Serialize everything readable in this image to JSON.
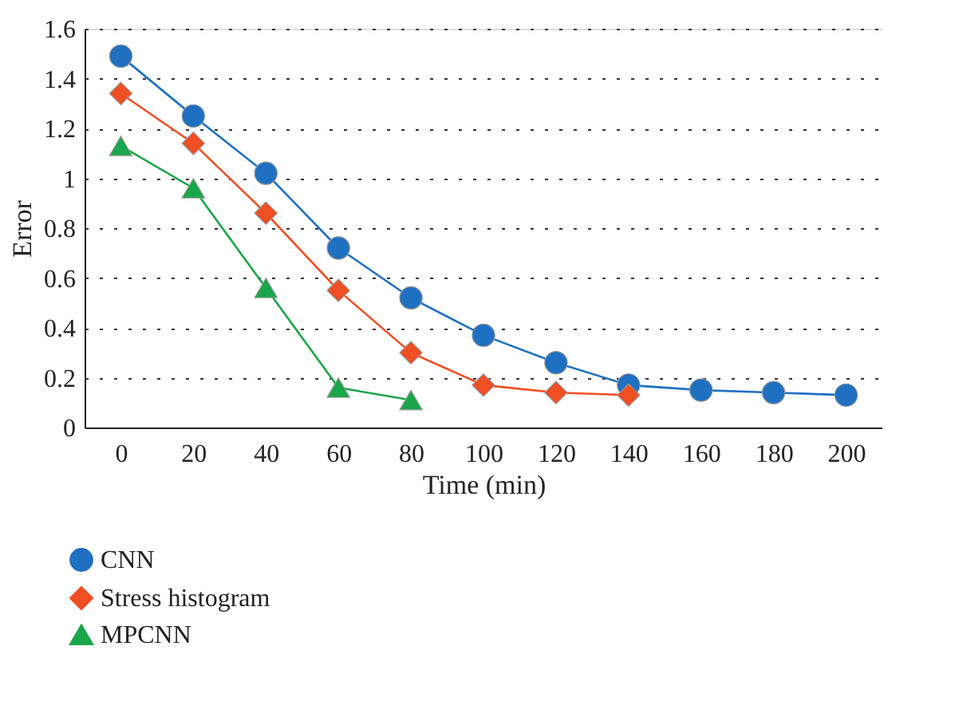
{
  "chart_data": {
    "type": "line",
    "xlabel": "Time (min)",
    "ylabel": "Error",
    "x": [
      0,
      20,
      40,
      60,
      80,
      100,
      120,
      140,
      160,
      180,
      200
    ],
    "series": [
      {
        "name": "CNN",
        "color": "#1f70c1",
        "marker": "circle",
        "values": [
          1.49,
          1.25,
          1.02,
          0.72,
          0.52,
          0.37,
          0.26,
          0.17,
          0.15,
          0.14,
          0.13
        ]
      },
      {
        "name": "Stress histogram",
        "color": "#f04e23",
        "marker": "diamond",
        "values": [
          1.34,
          1.14,
          0.86,
          0.55,
          0.3,
          0.17,
          0.14,
          0.13,
          null,
          null,
          null
        ]
      },
      {
        "name": "MPCNN",
        "color": "#1aa64a",
        "marker": "triangle",
        "values": [
          1.13,
          0.96,
          0.56,
          0.16,
          0.11,
          null,
          null,
          null,
          null,
          null,
          null
        ]
      }
    ],
    "xlim": [
      -10,
      210
    ],
    "xticks": [
      0,
      20,
      40,
      60,
      80,
      100,
      120,
      140,
      160,
      180,
      200
    ],
    "ylim": [
      0,
      1.6
    ],
    "yticks": [
      0,
      0.2,
      0.4,
      0.6,
      0.8,
      1,
      1.2,
      1.4,
      1.6
    ],
    "grid": "y",
    "legend": "bottom left",
    "line_style": "solid"
  }
}
